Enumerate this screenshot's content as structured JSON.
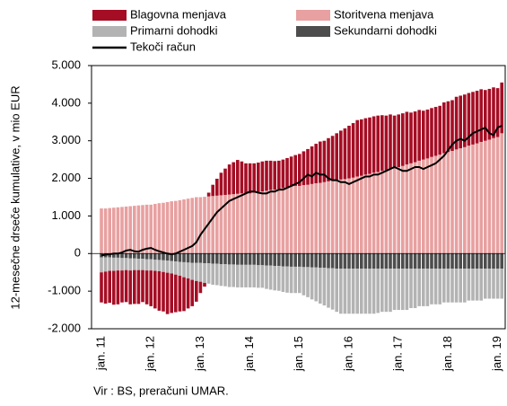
{
  "chart_data": {
    "type": "bar",
    "y_label": "12-mesečne drseče kumulative, v mio EUR",
    "source": "Vir : BS, preračuni  UMAR.",
    "categories": [
      "jan. 11",
      null,
      null,
      null,
      null,
      null,
      null,
      null,
      null,
      null,
      null,
      null,
      "jan. 12",
      null,
      null,
      null,
      null,
      null,
      null,
      null,
      null,
      null,
      null,
      null,
      "jan. 13",
      null,
      null,
      null,
      null,
      null,
      null,
      null,
      null,
      null,
      null,
      null,
      "jan. 14",
      null,
      null,
      null,
      null,
      null,
      null,
      null,
      null,
      null,
      null,
      null,
      "jan. 15",
      null,
      null,
      null,
      null,
      null,
      null,
      null,
      null,
      null,
      null,
      null,
      "jan. 16",
      null,
      null,
      null,
      null,
      null,
      null,
      null,
      null,
      null,
      null,
      null,
      "jan. 17",
      null,
      null,
      null,
      null,
      null,
      null,
      null,
      null,
      null,
      null,
      null,
      "jan. 18",
      null,
      null,
      null,
      null,
      null,
      null,
      null,
      null,
      null,
      null,
      null,
      "jan. 19",
      null
    ],
    "ylim": [
      -2000,
      5000
    ],
    "yticks": [
      {
        "value": -2000,
        "label": "-2.000"
      },
      {
        "value": -1000,
        "label": "-1.000"
      },
      0,
      {
        "value": 1000,
        "label": "1.000"
      },
      {
        "value": 2000,
        "label": "2.000"
      },
      {
        "value": 3000,
        "label": "3.000"
      },
      {
        "value": 4000,
        "label": "4.000"
      },
      {
        "value": 5000,
        "label": "5.000"
      }
    ],
    "series": [
      {
        "name": "Blagovna menjava",
        "color": "#a50d24",
        "values": [
          -800,
          -850,
          -850,
          -900,
          -900,
          -850,
          -850,
          -900,
          -900,
          -900,
          -850,
          -900,
          -950,
          -1000,
          -1050,
          -1050,
          -1100,
          -1050,
          -1000,
          -950,
          -900,
          -800,
          -700,
          -550,
          -300,
          -100,
          100,
          300,
          450,
          600,
          700,
          800,
          850,
          900,
          850,
          800,
          800,
          780,
          780,
          800,
          800,
          780,
          760,
          750,
          760,
          780,
          800,
          820,
          850,
          900,
          950,
          1000,
          1050,
          1100,
          1100,
          1150,
          1200,
          1250,
          1300,
          1350,
          1400,
          1450,
          1500,
          1500,
          1500,
          1500,
          1500,
          1500,
          1480,
          1450,
          1450,
          1400,
          1400,
          1400,
          1400,
          1350,
          1350,
          1350,
          1300,
          1300,
          1300,
          1300,
          1300,
          1350,
          1350,
          1350,
          1400,
          1400,
          1400,
          1400,
          1400,
          1400,
          1400,
          1350,
          1350,
          1350,
          1300,
          1350
        ]
      },
      {
        "name": "Storitvena menjava",
        "color": "#e8a0a0",
        "values": [
          1200,
          1200,
          1210,
          1220,
          1230,
          1240,
          1250,
          1260,
          1270,
          1280,
          1290,
          1300,
          1300,
          1320,
          1340,
          1350,
          1370,
          1390,
          1400,
          1420,
          1440,
          1460,
          1480,
          1500,
          1500,
          1510,
          1520,
          1530,
          1540,
          1550,
          1560,
          1570,
          1580,
          1590,
          1600,
          1600,
          1600,
          1620,
          1640,
          1650,
          1670,
          1690,
          1700,
          1720,
          1740,
          1760,
          1780,
          1800,
          1800,
          1820,
          1830,
          1850,
          1870,
          1880,
          1900,
          1920,
          1930,
          1950,
          1970,
          1980,
          2000,
          2020,
          2050,
          2070,
          2100,
          2120,
          2150,
          2170,
          2200,
          2220,
          2250,
          2270,
          2300,
          2330,
          2370,
          2400,
          2430,
          2470,
          2500,
          2530,
          2570,
          2600,
          2630,
          2670,
          2700,
          2730,
          2770,
          2800,
          2830,
          2870,
          2900,
          2930,
          2970,
          3000,
          3030,
          3070,
          3100,
          3200
        ]
      },
      {
        "name": "Primarni dohodki",
        "color": "#b3b3b3",
        "values": [
          -400,
          -380,
          -360,
          -350,
          -340,
          -330,
          -320,
          -320,
          -310,
          -300,
          -300,
          -300,
          -300,
          -300,
          -300,
          -310,
          -320,
          -330,
          -350,
          -370,
          -400,
          -420,
          -450,
          -480,
          -500,
          -520,
          -540,
          -560,
          -570,
          -580,
          -590,
          -600,
          -600,
          -600,
          -600,
          -600,
          -600,
          -600,
          -600,
          -600,
          -620,
          -640,
          -650,
          -660,
          -680,
          -700,
          -700,
          -700,
          -700,
          -750,
          -800,
          -850,
          -900,
          -950,
          -1000,
          -1050,
          -1100,
          -1150,
          -1200,
          -1200,
          -1200,
          -1200,
          -1200,
          -1200,
          -1200,
          -1200,
          -1200,
          -1180,
          -1150,
          -1150,
          -1150,
          -1100,
          -1100,
          -1100,
          -1100,
          -1050,
          -1050,
          -1000,
          -1000,
          -1000,
          -950,
          -950,
          -950,
          -900,
          -900,
          -900,
          -900,
          -900,
          -900,
          -850,
          -850,
          -850,
          -850,
          -800,
          -800,
          -800,
          -800,
          -800
        ]
      },
      {
        "name": "Sekundarni dohodki",
        "color": "#4d4d4d",
        "values": [
          -100,
          -100,
          -100,
          -110,
          -110,
          -120,
          -120,
          -130,
          -130,
          -140,
          -140,
          -150,
          -150,
          -160,
          -170,
          -180,
          -190,
          -200,
          -210,
          -220,
          -230,
          -240,
          -250,
          -250,
          -250,
          -260,
          -260,
          -270,
          -270,
          -280,
          -280,
          -290,
          -290,
          -300,
          -300,
          -300,
          -300,
          -300,
          -310,
          -310,
          -320,
          -320,
          -330,
          -330,
          -340,
          -340,
          -350,
          -350,
          -350,
          -360,
          -360,
          -370,
          -370,
          -380,
          -380,
          -390,
          -390,
          -400,
          -400,
          -400,
          -400,
          -400,
          -400,
          -400,
          -400,
          -400,
          -400,
          -400,
          -400,
          -400,
          -400,
          -400,
          -400,
          -400,
          -400,
          -400,
          -400,
          -400,
          -400,
          -400,
          -400,
          -400,
          -400,
          -400,
          -400,
          -400,
          -400,
          -400,
          -400,
          -400,
          -400,
          -400,
          -400,
          -400,
          -400,
          -400,
          -400,
          -400
        ]
      },
      {
        "name": "Tekoči račun",
        "color": "#000000",
        "kind": "line",
        "values": [
          -50,
          -30,
          -20,
          0,
          0,
          30,
          80,
          100,
          60,
          50,
          100,
          130,
          150,
          100,
          60,
          30,
          0,
          -20,
          0,
          50,
          100,
          150,
          200,
          300,
          500,
          650,
          800,
          950,
          1100,
          1200,
          1300,
          1400,
          1450,
          1500,
          1550,
          1600,
          1650,
          1650,
          1620,
          1600,
          1600,
          1650,
          1650,
          1700,
          1700,
          1750,
          1800,
          1850,
          1900,
          2000,
          2100,
          2050,
          2150,
          2100,
          2100,
          2000,
          1950,
          1950,
          1900,
          1900,
          1850,
          1900,
          1950,
          2000,
          2050,
          2050,
          2100,
          2100,
          2150,
          2200,
          2250,
          2300,
          2250,
          2200,
          2200,
          2250,
          2300,
          2300,
          2250,
          2300,
          2350,
          2400,
          2500,
          2600,
          2750,
          2900,
          3000,
          3050,
          3000,
          3100,
          3200,
          3250,
          3300,
          3350,
          3200,
          3150,
          3350,
          3400
        ]
      }
    ]
  }
}
